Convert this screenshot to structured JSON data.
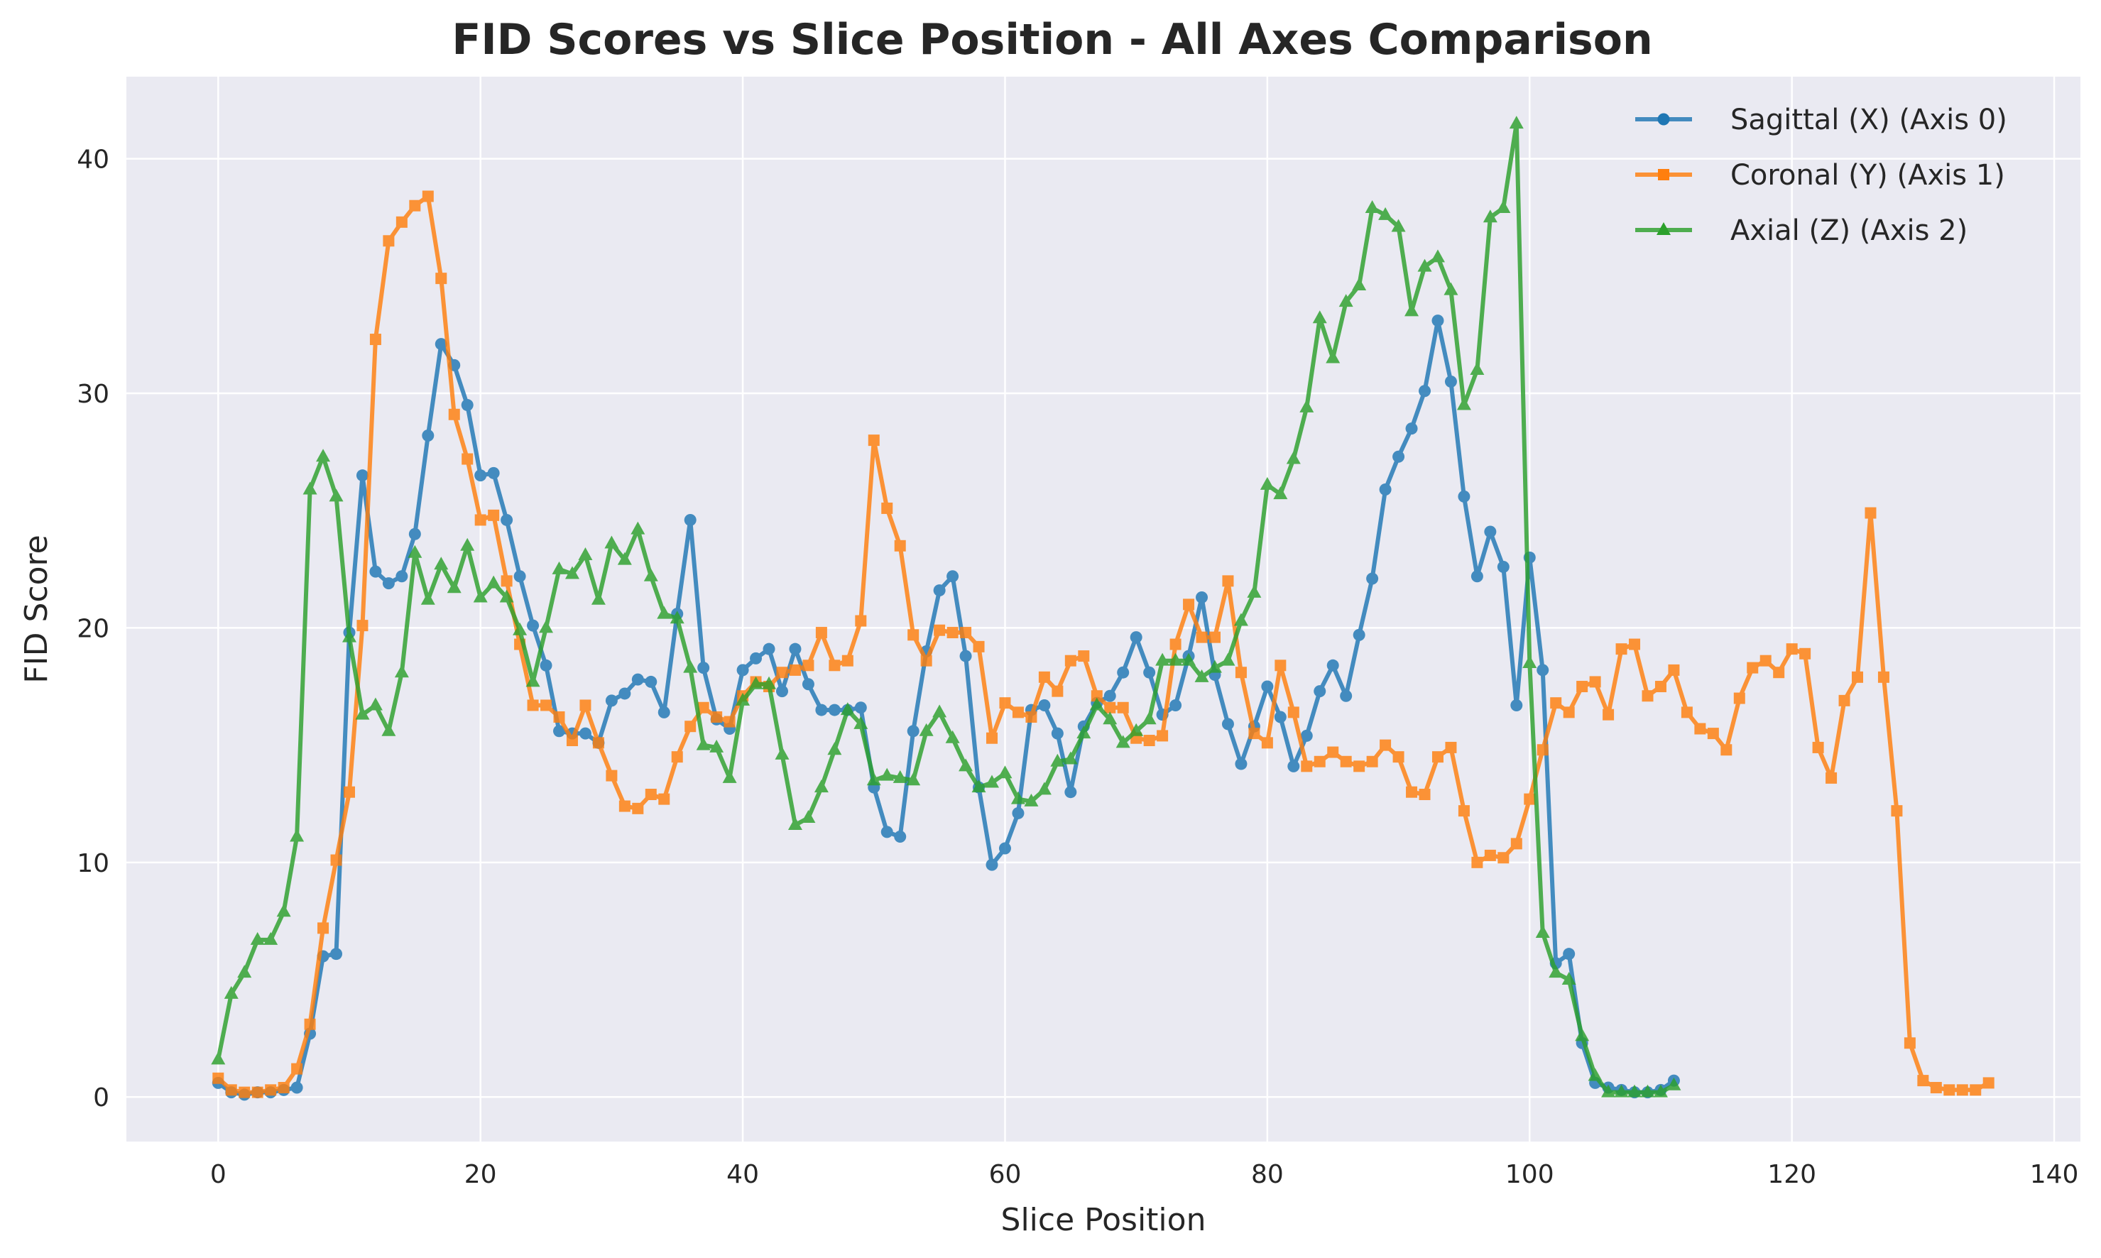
{
  "chart_data": {
    "type": "line",
    "title": "FID Scores vs Slice Position - All Axes Comparison",
    "xlabel": "Slice Position",
    "ylabel": "FID Score",
    "xlim": [
      -7,
      142
    ],
    "ylim": [
      -1.9,
      43.5
    ],
    "xticks": [
      0,
      20,
      40,
      60,
      80,
      100,
      120,
      140
    ],
    "yticks": [
      0,
      10,
      20,
      30,
      40
    ],
    "grid": true,
    "legend_position": "top-right",
    "series": [
      {
        "name": "Sagittal (X) (Axis 0)",
        "color": "#1f77b4",
        "marker": "circle",
        "x": [
          0,
          1,
          2,
          3,
          4,
          5,
          6,
          7,
          8,
          9,
          10,
          11,
          12,
          13,
          14,
          15,
          16,
          17,
          18,
          19,
          20,
          21,
          22,
          23,
          24,
          25,
          26,
          27,
          28,
          29,
          30,
          31,
          32,
          33,
          34,
          35,
          36,
          37,
          38,
          39,
          40,
          41,
          42,
          43,
          44,
          45,
          46,
          47,
          48,
          49,
          50,
          51,
          52,
          53,
          54,
          55,
          56,
          57,
          58,
          59,
          60,
          61,
          62,
          63,
          64,
          65,
          66,
          67,
          68,
          69,
          70,
          71,
          72,
          73,
          74,
          75,
          76,
          77,
          78,
          79,
          80,
          81,
          82,
          83,
          84,
          85,
          86,
          87,
          88,
          89,
          90,
          91,
          92,
          93,
          94,
          95,
          96,
          97,
          98,
          99,
          100,
          101,
          102,
          103,
          104,
          105,
          106,
          107,
          108,
          109,
          110,
          111
        ],
        "y": [
          0.6,
          0.2,
          0.1,
          0.2,
          0.2,
          0.3,
          0.4,
          2.7,
          6.0,
          6.1,
          19.8,
          26.5,
          22.4,
          21.9,
          22.2,
          24.0,
          28.2,
          32.1,
          31.2,
          29.5,
          26.5,
          26.6,
          24.6,
          22.2,
          20.1,
          18.4,
          15.6,
          15.5,
          15.5,
          15.1,
          16.9,
          17.2,
          17.8,
          17.7,
          16.4,
          20.6,
          24.6,
          18.3,
          16.1,
          15.7,
          18.2,
          18.7,
          19.1,
          17.3,
          19.1,
          17.6,
          16.5,
          16.5,
          16.5,
          16.6,
          13.2,
          11.3,
          11.1,
          15.6,
          19.0,
          21.6,
          22.2,
          18.8,
          13.2,
          9.9,
          10.6,
          12.1,
          16.5,
          16.7,
          15.5,
          13.0,
          15.8,
          16.8,
          17.1,
          18.1,
          19.6,
          18.1,
          16.3,
          16.7,
          18.8,
          21.3,
          18.0,
          15.9,
          14.2,
          15.8,
          17.5,
          16.2,
          14.1,
          15.4,
          17.3,
          18.4,
          17.1,
          19.7,
          22.1,
          25.9,
          27.3,
          28.5,
          30.1,
          33.1,
          30.5,
          25.6,
          22.2,
          24.1,
          22.6,
          16.7,
          23.0,
          18.2,
          5.7,
          6.1,
          2.3,
          0.6,
          0.4,
          0.3,
          0.2,
          0.2,
          0.3,
          0.7
        ]
      },
      {
        "name": "Coronal (Y) (Axis 1)",
        "color": "#ff7f0e",
        "marker": "square",
        "x": [
          0,
          1,
          2,
          3,
          4,
          5,
          6,
          7,
          8,
          9,
          10,
          11,
          12,
          13,
          14,
          15,
          16,
          17,
          18,
          19,
          20,
          21,
          22,
          23,
          24,
          25,
          26,
          27,
          28,
          29,
          30,
          31,
          32,
          33,
          34,
          35,
          36,
          37,
          38,
          39,
          40,
          41,
          42,
          43,
          44,
          45,
          46,
          47,
          48,
          49,
          50,
          51,
          52,
          53,
          54,
          55,
          56,
          57,
          58,
          59,
          60,
          61,
          62,
          63,
          64,
          65,
          66,
          67,
          68,
          69,
          70,
          71,
          72,
          73,
          74,
          75,
          76,
          77,
          78,
          79,
          80,
          81,
          82,
          83,
          84,
          85,
          86,
          87,
          88,
          89,
          90,
          91,
          92,
          93,
          94,
          95,
          96,
          97,
          98,
          99,
          100,
          101,
          102,
          103,
          104,
          105,
          106,
          107,
          108,
          109,
          110,
          111,
          112,
          113,
          114,
          115,
          116,
          117,
          118,
          119,
          120,
          121,
          122,
          123,
          124,
          125,
          126,
          127,
          128,
          129,
          130,
          131,
          132,
          133,
          134,
          135
        ],
        "y": [
          0.8,
          0.3,
          0.2,
          0.2,
          0.3,
          0.4,
          1.2,
          3.1,
          7.2,
          10.1,
          13.0,
          20.1,
          32.3,
          36.5,
          37.3,
          38.0,
          38.4,
          34.9,
          29.1,
          27.2,
          24.6,
          24.8,
          22.0,
          19.3,
          16.7,
          16.7,
          16.2,
          15.2,
          16.7,
          15.1,
          13.7,
          12.4,
          12.3,
          12.9,
          12.7,
          14.5,
          15.8,
          16.6,
          16.2,
          16.0,
          17.1,
          17.7,
          17.5,
          18.1,
          18.2,
          18.4,
          19.8,
          18.4,
          18.6,
          20.3,
          28.0,
          25.1,
          23.5,
          19.7,
          18.6,
          19.9,
          19.8,
          19.8,
          19.2,
          15.3,
          16.8,
          16.4,
          16.2,
          17.9,
          17.3,
          18.6,
          18.8,
          17.1,
          16.6,
          16.6,
          15.3,
          15.2,
          15.4,
          19.3,
          21.0,
          19.6,
          19.6,
          22.0,
          18.1,
          15.5,
          15.1,
          18.4,
          16.4,
          14.1,
          14.3,
          14.7,
          14.3,
          14.1,
          14.3,
          15.0,
          14.5,
          13.0,
          12.9,
          14.5,
          14.9,
          12.2,
          10.0,
          10.3,
          10.2,
          10.8,
          12.7,
          14.8,
          16.8,
          16.4,
          17.5,
          17.7,
          16.3,
          19.1,
          19.3,
          17.1,
          17.5,
          18.2,
          16.4,
          15.7,
          15.5,
          14.8,
          17.0,
          18.3,
          18.6,
          18.1,
          19.1,
          18.9,
          14.9,
          13.6,
          16.9,
          17.9,
          24.9,
          17.9,
          12.2,
          2.3,
          0.7,
          0.4,
          0.3,
          0.3,
          0.3,
          0.6
        ]
      },
      {
        "name": "Axial (Z) (Axis 2)",
        "color": "#2ca02c",
        "marker": "triangle",
        "x": [
          0,
          1,
          2,
          3,
          4,
          5,
          6,
          7,
          8,
          9,
          10,
          11,
          12,
          13,
          14,
          15,
          16,
          17,
          18,
          19,
          20,
          21,
          22,
          23,
          24,
          25,
          26,
          27,
          28,
          29,
          30,
          31,
          32,
          33,
          34,
          35,
          36,
          37,
          38,
          39,
          40,
          41,
          42,
          43,
          44,
          45,
          46,
          47,
          48,
          49,
          50,
          51,
          52,
          53,
          54,
          55,
          56,
          57,
          58,
          59,
          60,
          61,
          62,
          63,
          64,
          65,
          66,
          67,
          68,
          69,
          70,
          71,
          72,
          73,
          74,
          75,
          76,
          77,
          78,
          79,
          80,
          81,
          82,
          83,
          84,
          85,
          86,
          87,
          88,
          89,
          90,
          91,
          92,
          93,
          94,
          95,
          96,
          97,
          98,
          99,
          100,
          101,
          102,
          103,
          104,
          105,
          106,
          107,
          108,
          109,
          110,
          111
        ],
        "y": [
          1.6,
          4.4,
          5.3,
          6.7,
          6.7,
          7.9,
          11.1,
          25.9,
          27.3,
          25.6,
          19.6,
          16.3,
          16.7,
          15.6,
          18.1,
          23.2,
          21.2,
          22.7,
          21.7,
          23.5,
          21.3,
          21.9,
          21.3,
          19.9,
          17.7,
          20.0,
          22.5,
          22.3,
          23.1,
          21.2,
          23.6,
          22.9,
          24.2,
          22.2,
          20.6,
          20.4,
          18.3,
          15.0,
          14.9,
          13.6,
          16.9,
          17.6,
          17.6,
          14.6,
          11.6,
          11.9,
          13.2,
          14.8,
          16.5,
          15.9,
          13.5,
          13.7,
          13.6,
          13.5,
          15.6,
          16.4,
          15.3,
          14.1,
          13.2,
          13.4,
          13.8,
          12.7,
          12.6,
          13.1,
          14.3,
          14.4,
          15.5,
          16.7,
          16.1,
          15.1,
          15.6,
          16.1,
          18.6,
          18.6,
          18.6,
          17.9,
          18.3,
          18.6,
          20.3,
          21.5,
          26.1,
          25.7,
          27.2,
          29.4,
          33.2,
          31.5,
          33.9,
          34.6,
          37.9,
          37.6,
          37.1,
          33.5,
          35.4,
          35.8,
          34.4,
          29.5,
          31.0,
          37.5,
          37.9,
          41.5,
          18.5,
          7.0,
          5.3,
          5.0,
          2.6,
          0.9,
          0.2,
          0.2,
          0.2,
          0.2,
          0.2,
          0.5
        ]
      }
    ]
  }
}
